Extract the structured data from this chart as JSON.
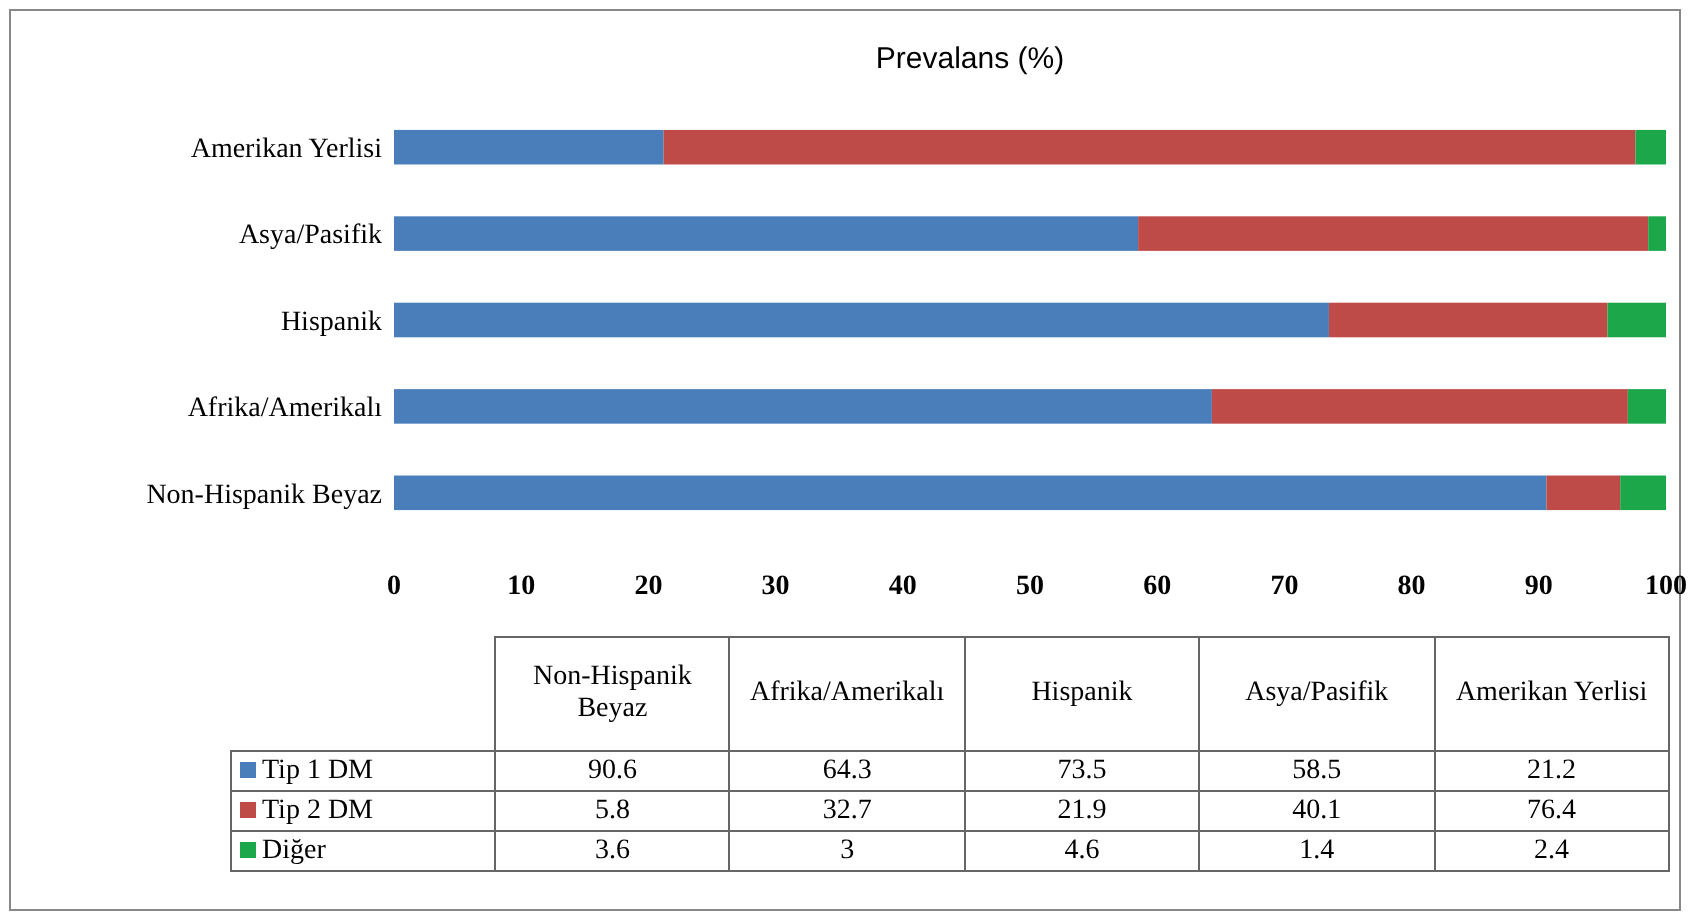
{
  "chart_data": [
    {
      "type": "bar",
      "orientation": "horizontal",
      "stacked": true,
      "title": "Prevalans (%)",
      "categories": [
        "Amerikan Yerlisi",
        "Asya/Pasifik",
        "Hispanik",
        "Afrika/Amerikalı",
        "Non-Hispanik Beyaz"
      ],
      "series": [
        {
          "color": "#4a7ebb",
          "values": [
            21.2,
            58.5,
            73.5,
            64.3,
            90.6
          ]
        },
        {
          "color": "#be4b48",
          "values": [
            76.4,
            40.1,
            21.9,
            32.7,
            5.8
          ]
        },
        {
          "color": "#1ca84a",
          "values": [
            2.4,
            1.4,
            4.6,
            3,
            3.6
          ]
        }
      ],
      "xlim": [
        0,
        100
      ],
      "xticks": [
        0,
        10,
        20,
        30,
        40,
        50,
        60,
        70,
        80,
        90,
        100
      ]
    },
    {
      "type": "other",
      "categories": [
        "Non-Hispanik Beyaz",
        "Afrika/Amerikalı",
        "Hispanik",
        "Asya/Pasifik",
        "Amerikan Yerlisi"
      ],
      "series": [
        {
          "name": "Tip 1 DM",
          "color": "#4a7ebb",
          "values": [
            90.6,
            64.3,
            73.5,
            58.5,
            21.2
          ]
        },
        {
          "name": "Tip 2 DM",
          "color": "#be4b48",
          "values": [
            5.8,
            32.7,
            21.9,
            40.1,
            76.4
          ]
        },
        {
          "name": "Diğer",
          "color": "#1ca84a",
          "values": [
            3.6,
            3,
            4.6,
            1.4,
            2.4
          ]
        }
      ],
      "legend": "left",
      "data_labels": true
    }
  ]
}
